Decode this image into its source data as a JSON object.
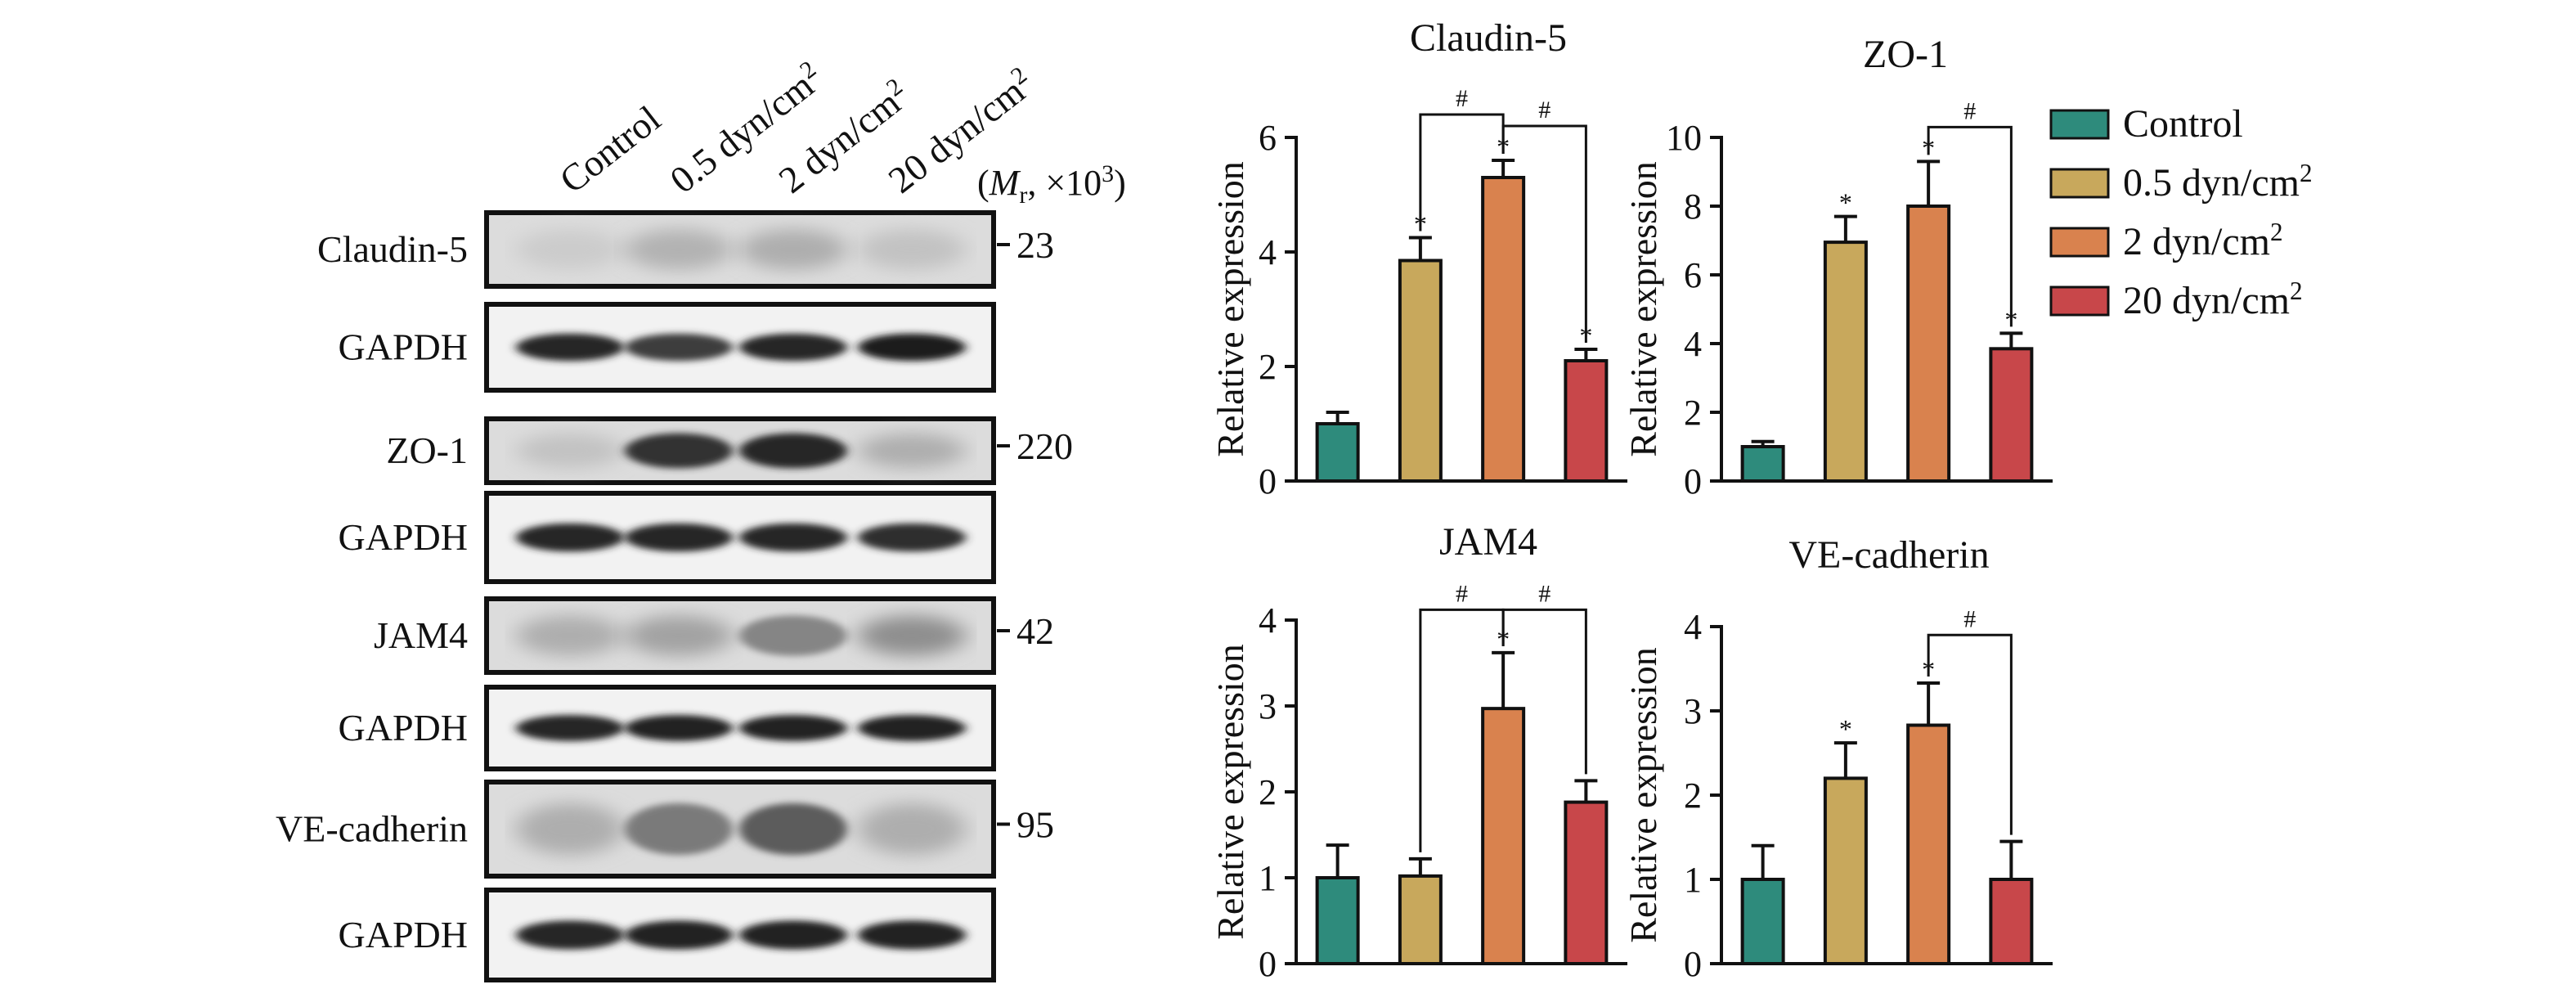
{
  "western_blot": {
    "lanes": [
      "Control",
      "0.5 dyn/cm²",
      "2 dyn/cm²",
      "20 dyn/cm²"
    ],
    "mr_label": {
      "open": "(",
      "m": "M",
      "sub": "r",
      "rest": ", ×10",
      "sup": "3",
      "close": ")"
    },
    "rows": [
      {
        "label": "Claudin-5",
        "marker": "23",
        "intensity": [
          0.15,
          0.28,
          0.3,
          0.2
        ]
      },
      {
        "label": "GAPDH",
        "marker": "",
        "intensity": [
          0.95,
          0.85,
          0.95,
          1.0
        ]
      },
      {
        "label": "ZO-1",
        "marker": "220",
        "intensity": [
          0.2,
          0.9,
          0.95,
          0.3
        ]
      },
      {
        "label": "GAPDH",
        "marker": "",
        "intensity": [
          0.95,
          0.95,
          0.95,
          0.92
        ]
      },
      {
        "label": "JAM4",
        "marker": "42",
        "intensity": [
          0.3,
          0.35,
          0.5,
          0.45
        ]
      },
      {
        "label": "GAPDH",
        "marker": "",
        "intensity": [
          0.95,
          0.98,
          0.98,
          0.98
        ]
      },
      {
        "label": "VE-cadherin",
        "marker": "95",
        "intensity": [
          0.3,
          0.55,
          0.7,
          0.3
        ]
      },
      {
        "label": "GAPDH",
        "marker": "",
        "intensity": [
          0.95,
          0.98,
          0.98,
          0.98
        ]
      }
    ]
  },
  "colors": {
    "Control": "#2e8b7c",
    "0.5 dyn/cm²": "#c8a85c",
    "2 dyn/cm²": "#d9824e",
    "20 dyn/cm²": "#c8474a"
  },
  "legend": {
    "placement": "right",
    "items": [
      "Control",
      "0.5 dyn/cm²",
      "2 dyn/cm²",
      "20 dyn/cm²"
    ]
  },
  "chart_data": [
    {
      "type": "bar",
      "title": "Claudin-5",
      "ylabel": "Relative expression",
      "categories": [
        "Control",
        "0.5 dyn/cm²",
        "2 dyn/cm²",
        "20 dyn/cm²"
      ],
      "values": [
        1.0,
        3.85,
        5.3,
        2.1
      ],
      "errors": [
        0.2,
        0.4,
        0.3,
        0.2
      ],
      "ylim": [
        0,
        6
      ],
      "yticks": [
        0,
        2,
        4,
        6
      ],
      "stars": [
        "",
        "*",
        "*",
        "*"
      ],
      "brackets": [
        {
          "from": 1,
          "to": 2,
          "label": "#",
          "level": 6.4
        },
        {
          "from": 2,
          "to": 3,
          "label": "#",
          "level": 6.2
        }
      ]
    },
    {
      "type": "bar",
      "title": "ZO-1",
      "ylabel": "Relative expression",
      "categories": [
        "Control",
        "0.5 dyn/cm²",
        "2 dyn/cm²",
        "20 dyn/cm²"
      ],
      "values": [
        1.0,
        6.95,
        8.0,
        3.85
      ],
      "errors": [
        0.15,
        0.75,
        1.3,
        0.45
      ],
      "ylim": [
        0,
        10
      ],
      "yticks": [
        0,
        2,
        4,
        6,
        8,
        10
      ],
      "stars": [
        "",
        "*",
        "*",
        "*"
      ],
      "brackets": [
        {
          "from": 2,
          "to": 3,
          "label": "#",
          "level": 10.3
        }
      ]
    },
    {
      "type": "bar",
      "title": "JAM4",
      "ylabel": "Relative expression",
      "categories": [
        "Control",
        "0.5 dyn/cm²",
        "2 dyn/cm²",
        "20 dyn/cm²"
      ],
      "values": [
        1.0,
        1.02,
        2.97,
        1.88
      ],
      "errors": [
        0.38,
        0.2,
        0.65,
        0.25
      ],
      "ylim": [
        0,
        4
      ],
      "yticks": [
        0,
        1,
        2,
        3,
        4
      ],
      "stars": [
        "",
        "",
        "*",
        ""
      ],
      "brackets": [
        {
          "from": 1,
          "to": 2,
          "label": "#",
          "level": 4.12
        },
        {
          "from": 2,
          "to": 3,
          "label": "#",
          "level": 4.12
        }
      ]
    },
    {
      "type": "bar",
      "title": "VE-cadherin",
      "ylabel": "Relative expression",
      "categories": [
        "Control",
        "0.5 dyn/cm²",
        "2 dyn/cm²",
        "20 dyn/cm²"
      ],
      "values": [
        1.0,
        2.2,
        2.83,
        1.0
      ],
      "errors": [
        0.4,
        0.42,
        0.5,
        0.45
      ],
      "ylim": [
        0,
        4
      ],
      "yticks": [
        0,
        1,
        2,
        3,
        4
      ],
      "stars": [
        "",
        "*",
        "*",
        ""
      ],
      "brackets": [
        {
          "from": 2,
          "to": 3,
          "label": "#",
          "level": 3.9
        }
      ]
    }
  ]
}
